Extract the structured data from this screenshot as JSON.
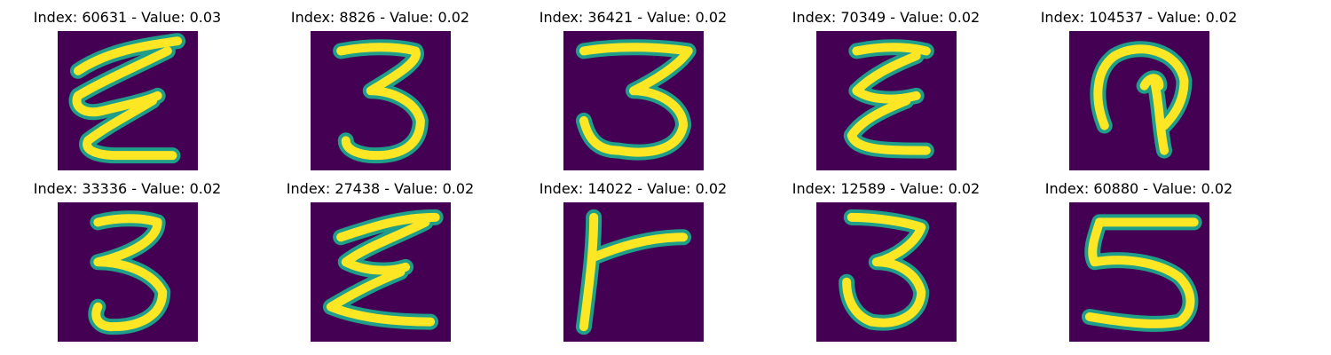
{
  "panels": [
    {
      "title": "Index: 60631 - Value: 0.03",
      "glyph": "digit-3-like-stroke"
    },
    {
      "title": "Index: 8826 - Value: 0.02",
      "glyph": "digit-3"
    },
    {
      "title": "Index: 36421 - Value: 0.02",
      "glyph": "digit-3"
    },
    {
      "title": "Index: 70349 - Value: 0.02",
      "glyph": "digit-3-like-stroke"
    },
    {
      "title": "Index: 104537 - Value: 0.02",
      "glyph": "loop-stroke"
    },
    {
      "title": "Index: 33336 - Value: 0.02",
      "glyph": "digit-3"
    },
    {
      "title": "Index: 27438 - Value: 0.02",
      "glyph": "digit-3-like-stroke"
    },
    {
      "title": "Index: 14022 - Value: 0.02",
      "glyph": "t-shaped-stroke"
    },
    {
      "title": "Index: 12589 - Value: 0.02",
      "glyph": "digit-3"
    },
    {
      "title": "Index: 60880 - Value: 0.02",
      "glyph": "digit-5"
    }
  ],
  "colors": {
    "image_background": "#440154",
    "stroke_core": "#fde725",
    "stroke_edge": "#1f9e89"
  }
}
